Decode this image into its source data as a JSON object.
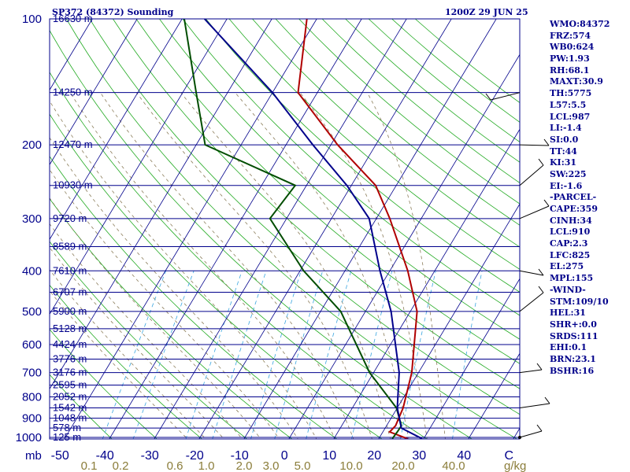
{
  "header": {
    "station": "SP372 (84372) Sounding",
    "datetime": "1200Z 29 JUN 25"
  },
  "indices": [
    "WMO:84372",
    "FRZ:574",
    "WB0:624",
    "PW:1.93",
    "RH:68.1",
    "MAXT:30.9",
    "TH:5775",
    "L57:5.5",
    "LCL:987",
    "LI:-1.4",
    "SI:0.0",
    "TT:44",
    "KI:31",
    "SW:225",
    "EI:-1.6",
    "-PARCEL-",
    "CAPE:359",
    "CINH:34",
    "LCL:910",
    "CAP:2.3",
    "LFC:825",
    "EL:275",
    "MPL:155",
    "-WIND-",
    "STM:109/10",
    "HEL:31",
    "SHR+:0.0",
    "SRDS:111",
    "EHI:0.1",
    "BRN:23.1",
    "BSHR:16"
  ],
  "chart_data": {
    "type": "line",
    "diagram": "Skew-T log-P",
    "x_axis_unit_label": "C",
    "x_axis_prefix_label": "mb",
    "temperature_ticks": [
      "-50",
      "-40",
      "-30",
      "-20",
      "-10",
      "0",
      "10",
      "20",
      "30",
      "40",
      "C"
    ],
    "temperature_tick_values": [
      -50,
      -40,
      -30,
      -20,
      -10,
      0,
      10,
      20,
      30,
      40,
      50
    ],
    "mixing_ratio_labels": [
      "0.1",
      "0.2",
      "0.6",
      "1.0",
      "2.0",
      "3.0",
      "5.0",
      "10.0",
      "20.0",
      "40.0"
    ],
    "mixing_ratio_unit": "g/kg",
    "pressure_ticks": [
      "100",
      "200",
      "300",
      "400",
      "500",
      "600",
      "700",
      "800",
      "900",
      "1000"
    ],
    "pressure_tick_values": [
      100,
      200,
      300,
      400,
      500,
      600,
      700,
      800,
      900,
      1000
    ],
    "ylim": [
      100,
      1050
    ],
    "xlim": [
      -50,
      50
    ],
    "y_scale": "log",
    "height_levels": [
      {
        "label": "16630 m",
        "p": 100
      },
      {
        "label": "14250 m",
        "p": 150
      },
      {
        "label": "12470 m",
        "p": 200
      },
      {
        "label": "10930 m",
        "p": 250
      },
      {
        "label": "9720 m",
        "p": 300
      },
      {
        "label": "8589 m",
        "p": 350
      },
      {
        "label": "7610 m",
        "p": 400
      },
      {
        "label": "6707 m",
        "p": 450
      },
      {
        "label": "5900 m",
        "p": 500
      },
      {
        "label": "5128 m",
        "p": 550
      },
      {
        "label": "4424 m",
        "p": 600
      },
      {
        "label": "3776 m",
        "p": 650
      },
      {
        "label": "3176 m",
        "p": 700
      },
      {
        "label": "2595 m",
        "p": 750
      },
      {
        "label": "2052 m",
        "p": 800
      },
      {
        "label": "1542 m",
        "p": 850
      },
      {
        "label": "1048 m",
        "p": 900
      },
      {
        "label": "578 m",
        "p": 950
      },
      {
        "label": "125 m",
        "p": 1000
      }
    ],
    "series": [
      {
        "key": "temperature",
        "color": "#b00000",
        "points": [
          [
            1008,
            26.5
          ],
          [
            970,
            21.5
          ],
          [
            938,
            22
          ],
          [
            850,
            21.3
          ],
          [
            700,
            18.5
          ],
          [
            500,
            11.5
          ],
          [
            400,
            4
          ],
          [
            300,
            -7
          ],
          [
            250,
            -14.6
          ],
          [
            200,
            -28.5
          ],
          [
            150,
            -44.3
          ],
          [
            100,
            -52.2
          ]
        ]
      },
      {
        "key": "dewpoint",
        "color": "#004d00",
        "points": [
          [
            1008,
            23
          ],
          [
            970,
            23.2
          ],
          [
            938,
            23.3
          ],
          [
            850,
            19.8
          ],
          [
            700,
            9.1
          ],
          [
            500,
            -5.5
          ],
          [
            400,
            -19.2
          ],
          [
            300,
            -33.7
          ],
          [
            250,
            -32.5
          ],
          [
            200,
            -58
          ],
          [
            150,
            -67
          ],
          [
            100,
            -79.5
          ]
        ]
      },
      {
        "key": "parcel",
        "color": "#00008b",
        "points": [
          [
            1008,
            29.7
          ],
          [
            950,
            23.6
          ],
          [
            850,
            20
          ],
          [
            700,
            15.7
          ],
          [
            500,
            5.7
          ],
          [
            400,
            -2.2
          ],
          [
            300,
            -11.6
          ],
          [
            250,
            -21
          ],
          [
            200,
            -34
          ],
          [
            150,
            -50
          ],
          [
            100,
            -75
          ]
        ]
      }
    ],
    "wind_pressures": [
      1000,
      850,
      700,
      500,
      400,
      300,
      250,
      200,
      150
    ]
  }
}
